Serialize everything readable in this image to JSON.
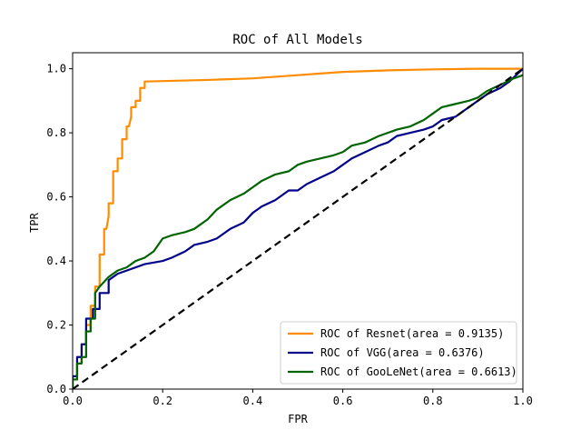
{
  "chart_data": {
    "type": "line",
    "title": "ROC of All Models",
    "xlabel": "FPR",
    "ylabel": "TPR",
    "xlim": [
      0.0,
      1.0
    ],
    "ylim": [
      0.0,
      1.05
    ],
    "xticks": [
      "0.0",
      "0.2",
      "0.4",
      "0.6",
      "0.8",
      "1.0"
    ],
    "yticks": [
      "0.0",
      "0.2",
      "0.4",
      "0.6",
      "0.8",
      "1.0"
    ],
    "grid": false,
    "legend_position": "lower-right",
    "series": [
      {
        "name": "ROC of Resnet(area = 0.9135)",
        "color": "#ff8c00",
        "x": [
          0.0,
          0.0,
          0.01,
          0.01,
          0.02,
          0.02,
          0.03,
          0.03,
          0.04,
          0.04,
          0.05,
          0.05,
          0.06,
          0.06,
          0.07,
          0.07,
          0.075,
          0.08,
          0.08,
          0.09,
          0.09,
          0.1,
          0.1,
          0.11,
          0.11,
          0.12,
          0.12,
          0.125,
          0.13,
          0.13,
          0.14,
          0.14,
          0.15,
          0.15,
          0.16,
          0.16,
          0.3,
          0.4,
          0.45,
          0.5,
          0.55,
          0.6,
          0.7,
          0.8,
          0.9,
          1.0
        ],
        "y": [
          0.0,
          0.03,
          0.03,
          0.08,
          0.08,
          0.14,
          0.14,
          0.2,
          0.2,
          0.26,
          0.26,
          0.32,
          0.32,
          0.42,
          0.42,
          0.5,
          0.5,
          0.54,
          0.58,
          0.58,
          0.68,
          0.68,
          0.72,
          0.72,
          0.78,
          0.78,
          0.82,
          0.82,
          0.85,
          0.88,
          0.88,
          0.9,
          0.9,
          0.94,
          0.94,
          0.96,
          0.965,
          0.97,
          0.975,
          0.98,
          0.985,
          0.99,
          0.995,
          0.998,
          1.0,
          1.0
        ]
      },
      {
        "name": "ROC of VGG(area = 0.6376)",
        "color": "#00008b",
        "x": [
          0.0,
          0.0,
          0.01,
          0.01,
          0.02,
          0.02,
          0.03,
          0.03,
          0.045,
          0.045,
          0.06,
          0.06,
          0.08,
          0.08,
          0.1,
          0.12,
          0.14,
          0.16,
          0.2,
          0.22,
          0.25,
          0.27,
          0.3,
          0.32,
          0.35,
          0.38,
          0.4,
          0.42,
          0.45,
          0.48,
          0.5,
          0.52,
          0.55,
          0.58,
          0.6,
          0.62,
          0.65,
          0.68,
          0.7,
          0.72,
          0.75,
          0.78,
          0.8,
          0.82,
          0.85,
          0.88,
          0.9,
          0.92,
          0.95,
          0.97,
          1.0
        ],
        "y": [
          0.0,
          0.04,
          0.04,
          0.1,
          0.1,
          0.14,
          0.14,
          0.22,
          0.22,
          0.25,
          0.25,
          0.3,
          0.3,
          0.34,
          0.36,
          0.37,
          0.38,
          0.39,
          0.4,
          0.41,
          0.43,
          0.45,
          0.46,
          0.47,
          0.5,
          0.52,
          0.55,
          0.57,
          0.59,
          0.62,
          0.62,
          0.64,
          0.66,
          0.68,
          0.7,
          0.72,
          0.74,
          0.76,
          0.77,
          0.79,
          0.8,
          0.81,
          0.82,
          0.84,
          0.85,
          0.88,
          0.9,
          0.92,
          0.94,
          0.96,
          1.0
        ]
      },
      {
        "name": "ROC of GooLeNet(area = 0.6613)",
        "color": "#006400",
        "x": [
          0.0,
          0.0,
          0.01,
          0.01,
          0.02,
          0.02,
          0.03,
          0.03,
          0.04,
          0.04,
          0.05,
          0.05,
          0.06,
          0.08,
          0.1,
          0.12,
          0.14,
          0.16,
          0.18,
          0.2,
          0.22,
          0.25,
          0.27,
          0.3,
          0.32,
          0.35,
          0.38,
          0.4,
          0.42,
          0.45,
          0.48,
          0.5,
          0.52,
          0.55,
          0.58,
          0.6,
          0.62,
          0.65,
          0.68,
          0.7,
          0.72,
          0.75,
          0.78,
          0.8,
          0.82,
          0.85,
          0.88,
          0.9,
          0.92,
          0.95,
          0.98,
          1.0
        ],
        "y": [
          0.0,
          0.03,
          0.03,
          0.08,
          0.08,
          0.1,
          0.1,
          0.18,
          0.18,
          0.22,
          0.22,
          0.3,
          0.32,
          0.35,
          0.37,
          0.38,
          0.4,
          0.41,
          0.43,
          0.47,
          0.48,
          0.49,
          0.5,
          0.53,
          0.56,
          0.59,
          0.61,
          0.63,
          0.65,
          0.67,
          0.68,
          0.7,
          0.71,
          0.72,
          0.73,
          0.74,
          0.76,
          0.77,
          0.79,
          0.8,
          0.81,
          0.82,
          0.84,
          0.86,
          0.88,
          0.89,
          0.9,
          0.91,
          0.93,
          0.95,
          0.97,
          0.98
        ]
      },
      {
        "name": "",
        "color": "#000000",
        "dashed": true,
        "x": [
          0.0,
          1.0
        ],
        "y": [
          0.0,
          1.0
        ]
      }
    ]
  }
}
